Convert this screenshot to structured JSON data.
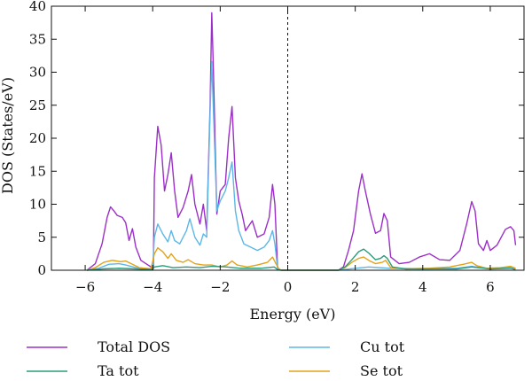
{
  "chart_data": {
    "type": "line",
    "title": "",
    "xlabel": "Energy (eV)",
    "ylabel": "DOS (States/eV)",
    "xlim": [
      -7,
      7
    ],
    "ylim": [
      0,
      40
    ],
    "xticks": [
      -6,
      -4,
      -2,
      0,
      2,
      4,
      6
    ],
    "yticks": [
      0,
      5,
      10,
      15,
      20,
      25,
      30,
      35,
      40
    ],
    "fermi_level": 0,
    "legend_position": "below",
    "series": [
      {
        "name": "Total DOS",
        "color": "#9b30c6",
        "points": [
          [
            -5.95,
            0
          ],
          [
            -5.7,
            1.0
          ],
          [
            -5.5,
            4.0
          ],
          [
            -5.35,
            8.0
          ],
          [
            -5.25,
            9.6
          ],
          [
            -5.15,
            9.0
          ],
          [
            -5.05,
            8.3
          ],
          [
            -4.9,
            8.0
          ],
          [
            -4.8,
            7.2
          ],
          [
            -4.7,
            4.5
          ],
          [
            -4.6,
            6.3
          ],
          [
            -4.5,
            3.5
          ],
          [
            -4.35,
            1.5
          ],
          [
            -4.2,
            1.0
          ],
          [
            -4.05,
            0.5
          ],
          [
            -3.98,
            0.4
          ],
          [
            -3.95,
            14.0
          ],
          [
            -3.85,
            21.8
          ],
          [
            -3.75,
            19.0
          ],
          [
            -3.65,
            12.0
          ],
          [
            -3.55,
            14.5
          ],
          [
            -3.45,
            17.8
          ],
          [
            -3.35,
            12.0
          ],
          [
            -3.25,
            8.0
          ],
          [
            -3.1,
            9.5
          ],
          [
            -2.95,
            12.0
          ],
          [
            -2.85,
            14.5
          ],
          [
            -2.75,
            10.0
          ],
          [
            -2.6,
            7.0
          ],
          [
            -2.5,
            10.0
          ],
          [
            -2.4,
            6.0
          ],
          [
            -2.3,
            25.0
          ],
          [
            -2.25,
            39.0
          ],
          [
            -2.2,
            30.0
          ],
          [
            -2.1,
            8.5
          ],
          [
            -2.0,
            12.0
          ],
          [
            -1.85,
            13.0
          ],
          [
            -1.75,
            20.0
          ],
          [
            -1.65,
            24.8
          ],
          [
            -1.55,
            14.0
          ],
          [
            -1.45,
            10.5
          ],
          [
            -1.35,
            8.5
          ],
          [
            -1.25,
            6.0
          ],
          [
            -1.05,
            7.5
          ],
          [
            -0.9,
            5.0
          ],
          [
            -0.7,
            5.5
          ],
          [
            -0.55,
            8.0
          ],
          [
            -0.45,
            13.0
          ],
          [
            -0.38,
            10.0
          ],
          [
            -0.3,
            0.3
          ],
          [
            -0.2,
            0
          ],
          [
            1.5,
            0
          ],
          [
            1.65,
            0.5
          ],
          [
            1.8,
            3.0
          ],
          [
            1.95,
            6.0
          ],
          [
            2.1,
            12.0
          ],
          [
            2.2,
            14.6
          ],
          [
            2.3,
            12.0
          ],
          [
            2.45,
            8.5
          ],
          [
            2.6,
            5.6
          ],
          [
            2.75,
            6.0
          ],
          [
            2.85,
            8.6
          ],
          [
            2.95,
            7.5
          ],
          [
            3.05,
            2.0
          ],
          [
            3.3,
            1.0
          ],
          [
            3.6,
            1.2
          ],
          [
            3.9,
            2.0
          ],
          [
            4.2,
            2.5
          ],
          [
            4.5,
            1.6
          ],
          [
            4.8,
            1.5
          ],
          [
            5.1,
            3.0
          ],
          [
            5.3,
            7.0
          ],
          [
            5.45,
            10.4
          ],
          [
            5.55,
            9.0
          ],
          [
            5.65,
            4.0
          ],
          [
            5.8,
            3.0
          ],
          [
            5.9,
            4.5
          ],
          [
            6.0,
            3.0
          ],
          [
            6.2,
            3.8
          ],
          [
            6.45,
            6.2
          ],
          [
            6.6,
            6.6
          ],
          [
            6.7,
            6.0
          ],
          [
            6.75,
            3.8
          ]
        ]
      },
      {
        "name": "Cu tot",
        "color": "#5db7e6",
        "points": [
          [
            -5.95,
            0
          ],
          [
            -5.6,
            0.3
          ],
          [
            -5.3,
            0.9
          ],
          [
            -5.0,
            1.0
          ],
          [
            -4.8,
            0.8
          ],
          [
            -4.5,
            0.4
          ],
          [
            -4.0,
            0.2
          ],
          [
            -3.95,
            5.0
          ],
          [
            -3.85,
            7.0
          ],
          [
            -3.7,
            5.5
          ],
          [
            -3.55,
            4.3
          ],
          [
            -3.45,
            6.0
          ],
          [
            -3.35,
            4.5
          ],
          [
            -3.2,
            4.0
          ],
          [
            -3.0,
            6.0
          ],
          [
            -2.9,
            7.8
          ],
          [
            -2.75,
            5.0
          ],
          [
            -2.6,
            3.8
          ],
          [
            -2.5,
            5.5
          ],
          [
            -2.4,
            5.0
          ],
          [
            -2.3,
            24.0
          ],
          [
            -2.25,
            31.6
          ],
          [
            -2.2,
            24.0
          ],
          [
            -2.1,
            9.0
          ],
          [
            -2.0,
            10.5
          ],
          [
            -1.85,
            12.0
          ],
          [
            -1.75,
            14.0
          ],
          [
            -1.65,
            16.4
          ],
          [
            -1.55,
            9.0
          ],
          [
            -1.45,
            6.0
          ],
          [
            -1.3,
            4.0
          ],
          [
            -1.1,
            3.5
          ],
          [
            -0.9,
            3.0
          ],
          [
            -0.7,
            3.5
          ],
          [
            -0.55,
            4.5
          ],
          [
            -0.45,
            6.0
          ],
          [
            -0.38,
            4.0
          ],
          [
            -0.3,
            0.3
          ],
          [
            -0.2,
            0
          ],
          [
            1.5,
            0
          ],
          [
            2.0,
            0.3
          ],
          [
            2.4,
            0.5
          ],
          [
            3.0,
            0.3
          ],
          [
            4.0,
            0.2
          ],
          [
            5.0,
            0.3
          ],
          [
            5.45,
            0.6
          ],
          [
            6.0,
            0.2
          ],
          [
            6.6,
            0.4
          ],
          [
            6.75,
            0.2
          ]
        ]
      },
      {
        "name": "Ta tot",
        "color": "#2a9d7a",
        "points": [
          [
            -5.95,
            0
          ],
          [
            -5.5,
            0.2
          ],
          [
            -5.0,
            0.3
          ],
          [
            -4.5,
            0.2
          ],
          [
            -4.0,
            0.1
          ],
          [
            -3.95,
            0.5
          ],
          [
            -3.7,
            0.7
          ],
          [
            -3.4,
            0.4
          ],
          [
            -3.0,
            0.5
          ],
          [
            -2.6,
            0.4
          ],
          [
            -2.25,
            0.6
          ],
          [
            -1.8,
            0.5
          ],
          [
            -1.4,
            0.3
          ],
          [
            -0.8,
            0.3
          ],
          [
            -0.4,
            0.5
          ],
          [
            -0.3,
            0.1
          ],
          [
            -0.2,
            0
          ],
          [
            1.5,
            0
          ],
          [
            1.7,
            0.5
          ],
          [
            1.9,
            1.6
          ],
          [
            2.1,
            2.8
          ],
          [
            2.25,
            3.2
          ],
          [
            2.4,
            2.6
          ],
          [
            2.6,
            1.6
          ],
          [
            2.75,
            1.8
          ],
          [
            2.85,
            2.2
          ],
          [
            2.95,
            1.8
          ],
          [
            3.1,
            0.5
          ],
          [
            3.5,
            0.2
          ],
          [
            4.2,
            0.2
          ],
          [
            5.0,
            0.2
          ],
          [
            5.45,
            0.5
          ],
          [
            6.0,
            0.2
          ],
          [
            6.6,
            0.3
          ],
          [
            6.75,
            0.1
          ]
        ]
      },
      {
        "name": "Se tot",
        "color": "#e3a21a",
        "points": [
          [
            -5.95,
            0
          ],
          [
            -5.7,
            0.4
          ],
          [
            -5.45,
            1.2
          ],
          [
            -5.2,
            1.5
          ],
          [
            -4.95,
            1.3
          ],
          [
            -4.8,
            1.4
          ],
          [
            -4.6,
            0.9
          ],
          [
            -4.4,
            0.4
          ],
          [
            -4.05,
            0.2
          ],
          [
            -3.95,
            2.5
          ],
          [
            -3.85,
            3.4
          ],
          [
            -3.7,
            2.8
          ],
          [
            -3.55,
            1.8
          ],
          [
            -3.45,
            2.5
          ],
          [
            -3.3,
            1.5
          ],
          [
            -3.1,
            1.2
          ],
          [
            -2.95,
            1.6
          ],
          [
            -2.75,
            1.0
          ],
          [
            -2.5,
            0.8
          ],
          [
            -2.25,
            0.8
          ],
          [
            -2.0,
            0.5
          ],
          [
            -1.8,
            0.8
          ],
          [
            -1.65,
            1.4
          ],
          [
            -1.5,
            0.8
          ],
          [
            -1.2,
            0.5
          ],
          [
            -0.9,
            0.8
          ],
          [
            -0.6,
            1.2
          ],
          [
            -0.45,
            2.0
          ],
          [
            -0.35,
            1.0
          ],
          [
            -0.25,
            0.1
          ],
          [
            -0.2,
            0
          ],
          [
            1.5,
            0
          ],
          [
            1.7,
            0.4
          ],
          [
            1.9,
            1.2
          ],
          [
            2.1,
            1.8
          ],
          [
            2.25,
            2.0
          ],
          [
            2.4,
            1.5
          ],
          [
            2.6,
            1.0
          ],
          [
            2.8,
            1.2
          ],
          [
            2.9,
            1.5
          ],
          [
            3.05,
            0.4
          ],
          [
            3.5,
            0.2
          ],
          [
            4.2,
            0.3
          ],
          [
            4.8,
            0.5
          ],
          [
            5.2,
            0.9
          ],
          [
            5.45,
            1.2
          ],
          [
            5.6,
            0.7
          ],
          [
            5.9,
            0.3
          ],
          [
            6.3,
            0.4
          ],
          [
            6.6,
            0.6
          ],
          [
            6.75,
            0.3
          ]
        ]
      }
    ]
  }
}
